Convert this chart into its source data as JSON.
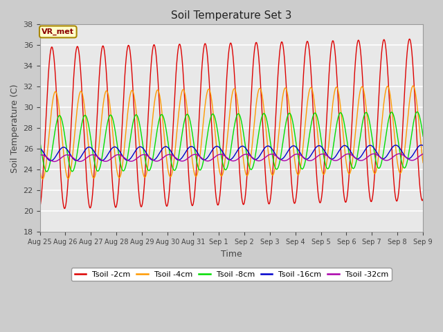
{
  "title": "Soil Temperature Set 3",
  "xlabel": "Time",
  "ylabel": "Soil Temperature (C)",
  "ylim": [
    18,
    38
  ],
  "yticks": [
    18,
    20,
    22,
    24,
    26,
    28,
    30,
    32,
    34,
    36,
    38
  ],
  "x_labels": [
    "Aug 25",
    "Aug 26",
    "Aug 27",
    "Aug 28",
    "Aug 29",
    "Aug 30",
    "Aug 31",
    "Sep 1",
    "Sep 2",
    "Sep 3",
    "Sep 4",
    "Sep 5",
    "Sep 6",
    "Sep 7",
    "Sep 8",
    "Sep 9"
  ],
  "num_days": 15,
  "annotation_text": "VR_met",
  "colors": {
    "Tsoil -2cm": "#dd0000",
    "Tsoil -4cm": "#ff9900",
    "Tsoil -8cm": "#00dd00",
    "Tsoil -16cm": "#0000cc",
    "Tsoil -32cm": "#aa00aa"
  },
  "background_color": "#cccccc",
  "plot_bg_color": "#e8e8e8",
  "grid_color": "#ffffff",
  "params": {
    "Tsoil -2cm": {
      "mean": 28.0,
      "amp": 7.8,
      "phase": 0.22,
      "trend": 0.055
    },
    "Tsoil -4cm": {
      "mean": 27.3,
      "amp": 4.2,
      "phase": 0.36,
      "trend": 0.04
    },
    "Tsoil -8cm": {
      "mean": 26.5,
      "amp": 2.7,
      "phase": 0.52,
      "trend": 0.025
    },
    "Tsoil -16cm": {
      "mean": 25.5,
      "amp": 0.65,
      "phase": 0.68,
      "trend": 0.015
    },
    "Tsoil -32cm": {
      "mean": 25.1,
      "amp": 0.32,
      "phase": 0.82,
      "trend": 0.008
    }
  },
  "series_names": [
    "Tsoil -2cm",
    "Tsoil -4cm",
    "Tsoil -8cm",
    "Tsoil -16cm",
    "Tsoil -32cm"
  ]
}
